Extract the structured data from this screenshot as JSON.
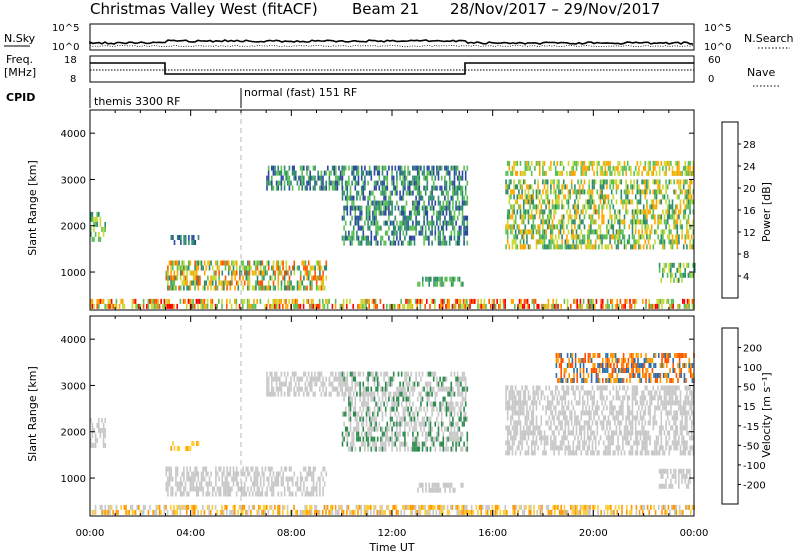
{
  "header": {
    "station": "Christmas Valley West (fitACF)",
    "beam": "Beam 21",
    "date_range": "28/Nov/2017 – 29/Nov/2017"
  },
  "sky_panel": {
    "left_label": "N.Sky",
    "right_label": "N.Search",
    "left_ticks": [
      "10^5",
      "10^0"
    ],
    "right_ticks": [
      "10^5",
      "10^0"
    ]
  },
  "freq_panel": {
    "left_label_1": "Freq.",
    "left_label_2": "[MHz]",
    "right_label": "Nave",
    "left_ticks": [
      "18",
      "8"
    ],
    "right_ticks": [
      "60",
      "0"
    ]
  },
  "cpid": {
    "label": "CPID",
    "modes": [
      {
        "name": "themis 3300 RF",
        "start_hour": 0
      },
      {
        "name": "normal (fast) 151 RF",
        "start_hour": 6
      }
    ]
  },
  "chart_data": [
    {
      "type": "heatmap",
      "quantity": "Power",
      "ylabel": "Slant Range [km]",
      "ylim": [
        180,
        4500
      ],
      "yticks": [
        "1000",
        "2000",
        "3000",
        "4000"
      ],
      "xlim_hours": [
        0,
        24
      ],
      "xticks": [
        "00:00",
        "04:00",
        "08:00",
        "12:00",
        "16:00",
        "20:00",
        "00:00"
      ],
      "colorbar": {
        "label": "Power [dB]",
        "ticks": [
          "4",
          "8",
          "12",
          "16",
          "20",
          "24",
          "28"
        ],
        "colors": [
          "#0000ff",
          "#2b4a9c",
          "#2e8b6e",
          "#5cbf55",
          "#c8d836",
          "#ffa500",
          "#ff5500",
          "#ff0000"
        ]
      },
      "regions": [
        {
          "t0": 0.0,
          "t1": 24.0,
          "r0": 220,
          "r1": 420,
          "levels": [
            12,
            16,
            20,
            24,
            28
          ]
        },
        {
          "t0": 3.0,
          "t1": 9.4,
          "r0": 650,
          "r1": 1250,
          "levels": [
            8,
            12,
            16,
            20,
            24
          ]
        },
        {
          "t0": 7.0,
          "t1": 10.0,
          "r0": 2800,
          "r1": 3300,
          "levels": [
            4,
            8,
            12
          ]
        },
        {
          "t0": 10.0,
          "t1": 15.0,
          "r0": 1600,
          "r1": 3300,
          "levels": [
            4,
            8,
            12
          ]
        },
        {
          "t0": 16.5,
          "t1": 24.0,
          "r0": 1500,
          "r1": 3000,
          "levels": [
            8,
            12,
            16,
            20
          ]
        },
        {
          "t0": 16.5,
          "t1": 24.0,
          "r0": 3100,
          "r1": 3400,
          "levels": [
            12,
            16,
            20
          ]
        },
        {
          "t0": 0.0,
          "t1": 0.6,
          "r0": 1700,
          "r1": 2300,
          "levels": [
            8,
            12,
            16
          ]
        },
        {
          "t0": 3.2,
          "t1": 4.3,
          "r0": 1600,
          "r1": 1800,
          "levels": [
            4,
            8
          ]
        },
        {
          "t0": 22.6,
          "t1": 24.0,
          "r0": 800,
          "r1": 1200,
          "levels": [
            8,
            12,
            16
          ]
        },
        {
          "t0": 13.0,
          "t1": 14.8,
          "r0": 750,
          "r1": 900,
          "levels": [
            8,
            12
          ]
        }
      ]
    },
    {
      "type": "heatmap",
      "quantity": "Velocity",
      "ylabel": "Slant Range [km]",
      "xlabel": "Time UT",
      "ylim": [
        180,
        4500
      ],
      "yticks": [
        "1000",
        "2000",
        "3000",
        "4000"
      ],
      "xlim_hours": [
        0,
        24
      ],
      "xticks": [
        "00:00",
        "04:00",
        "08:00",
        "12:00",
        "16:00",
        "20:00",
        "00:00"
      ],
      "colorbar": {
        "label": "Velocity [m s⁻¹]",
        "ticks": [
          "200",
          "100",
          "50",
          "15",
          "-15",
          "-50",
          "-100",
          "-200"
        ],
        "colors": [
          "#2233bb",
          "#2f6fa8",
          "#2e8b4e",
          "#66cc33",
          "#c8c8c8",
          "#ffcc33",
          "#ff9900",
          "#ff5500",
          "#ff0000"
        ]
      },
      "regions": [
        {
          "t0": 0.0,
          "t1": 24.0,
          "r0": 220,
          "r1": 420,
          "levels": [
            -50,
            -100,
            -15
          ]
        },
        {
          "t0": 3.0,
          "t1": 9.4,
          "r0": 650,
          "r1": 1250,
          "levels": [
            0,
            0,
            15
          ]
        },
        {
          "t0": 7.0,
          "t1": 10.0,
          "r0": 2800,
          "r1": 3300,
          "levels": [
            0,
            15
          ]
        },
        {
          "t0": 10.0,
          "t1": 15.0,
          "r0": 1600,
          "r1": 3300,
          "levels": [
            0,
            15,
            50
          ]
        },
        {
          "t0": 16.5,
          "t1": 24.0,
          "r0": 1500,
          "r1": 3000,
          "levels": [
            0,
            0,
            15
          ]
        },
        {
          "t0": 18.5,
          "t1": 24.0,
          "r0": 3100,
          "r1": 3700,
          "levels": [
            -200,
            -100,
            100
          ]
        },
        {
          "t0": 0.0,
          "t1": 0.6,
          "r0": 1700,
          "r1": 2300,
          "levels": [
            0
          ]
        },
        {
          "t0": 3.2,
          "t1": 4.3,
          "r0": 1600,
          "r1": 1800,
          "levels": [
            -100,
            -50
          ]
        },
        {
          "t0": 22.6,
          "t1": 24.0,
          "r0": 800,
          "r1": 1200,
          "levels": [
            0,
            15
          ]
        },
        {
          "t0": 13.0,
          "t1": 14.8,
          "r0": 750,
          "r1": 900,
          "levels": [
            0
          ]
        }
      ]
    }
  ]
}
